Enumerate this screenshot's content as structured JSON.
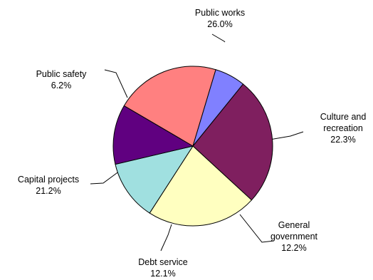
{
  "chart_data": {
    "type": "pie",
    "title": "",
    "slices": [
      {
        "label": "Public works",
        "value": 26.0,
        "value_label": "26.0%",
        "color": "#7f1f5f"
      },
      {
        "label": "Culture and recreation",
        "value": 22.3,
        "value_label": "22.3%",
        "color": "#ffffc0"
      },
      {
        "label": "General government",
        "value": 12.2,
        "value_label": "12.2%",
        "color": "#a0e0e0"
      },
      {
        "label": "Debt service",
        "value": 12.1,
        "value_label": "12.1%",
        "color": "#600080"
      },
      {
        "label": "Capital projects",
        "value": 21.2,
        "value_label": "21.2%",
        "color": "#ff8080"
      },
      {
        "label": "Public safety",
        "value": 6.2,
        "value_label": "6.2%",
        "color": "#8080ff"
      }
    ],
    "start_angle_deg": 51,
    "direction": "clockwise",
    "outline_color": "#000000",
    "label_lines": [
      [
        "Public works",
        "26.0%"
      ],
      [
        "Culture and",
        "recreation",
        "22.3%"
      ],
      [
        "General",
        "government",
        "12.2%"
      ],
      [
        "Debt service",
        "12.1%"
      ],
      [
        "Capital projects",
        "21.2%"
      ],
      [
        "Public safety",
        "6.2%"
      ]
    ]
  }
}
